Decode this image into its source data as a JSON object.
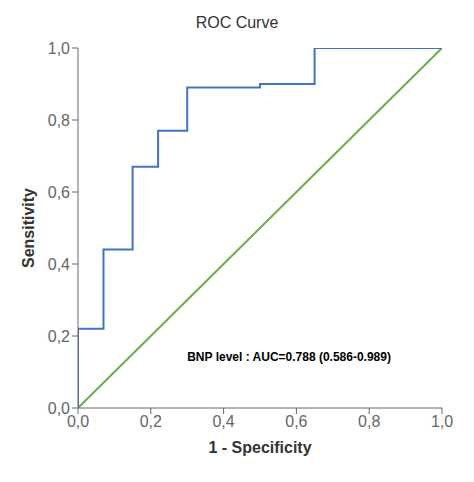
{
  "chart_data": {
    "type": "line",
    "title": "ROC Curve",
    "x_label": "1 - Specificity",
    "y_label": "Sensitivity",
    "series": [
      {
        "x": [
          0.0,
          1.0
        ],
        "values": [
          0.0,
          1.0
        ],
        "color": "#70AD47"
      },
      {
        "x": [
          0.0,
          0.0,
          0.07,
          0.07,
          0.15,
          0.15,
          0.22,
          0.22,
          0.3,
          0.3,
          0.5,
          0.5,
          0.65,
          0.65,
          1.0
        ],
        "values": [
          0.0,
          0.22,
          0.22,
          0.44,
          0.44,
          0.67,
          0.67,
          0.77,
          0.77,
          0.89,
          0.89,
          0.9,
          0.9,
          1.0,
          1.0
        ],
        "color": "#4472C4"
      }
    ],
    "xlim": [
      0.0,
      1.0
    ],
    "ylim": [
      0.0,
      1.0
    ],
    "xticks": [
      {
        "value": 0.0,
        "label": "0,0"
      },
      {
        "value": 0.2,
        "label": "0,2"
      },
      {
        "value": 0.4,
        "label": "0,4"
      },
      {
        "value": 0.6,
        "label": "0,6"
      },
      {
        "value": 0.8,
        "label": "0,8"
      },
      {
        "value": 1.0,
        "label": "1,0"
      }
    ],
    "yticks": [
      {
        "value": 0.0,
        "label": "0,0"
      },
      {
        "value": 0.2,
        "label": "0,2"
      },
      {
        "value": 0.4,
        "label": "0,4"
      },
      {
        "value": 0.6,
        "label": "0,6"
      },
      {
        "value": 0.8,
        "label": "0,8"
      },
      {
        "value": 1.0,
        "label": "1,0"
      }
    ],
    "annotations": [
      {
        "text": "BNP level : AUC=0.788 (0.586-0.989)",
        "x": 0.3,
        "y": 0.13
      }
    ],
    "grid": false
  }
}
